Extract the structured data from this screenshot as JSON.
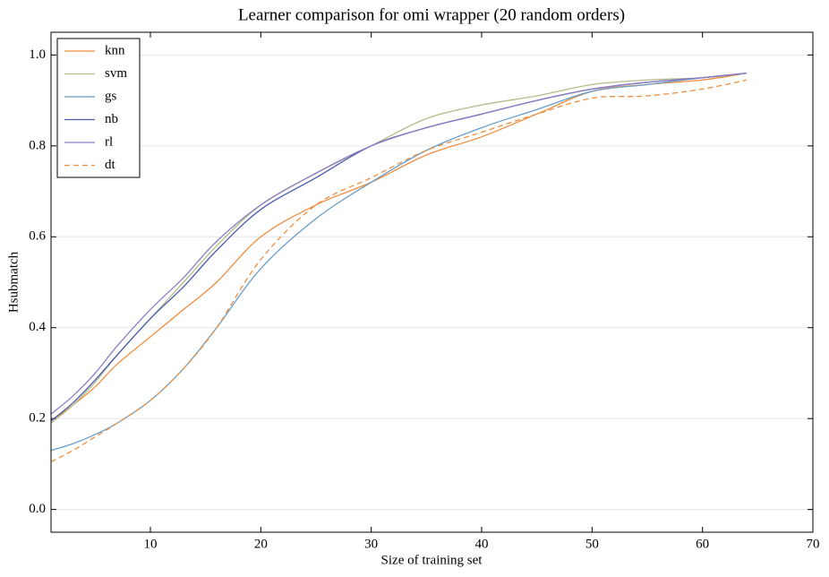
{
  "chart_data": {
    "type": "line",
    "title": "Learner comparison for omi wrapper (20 random orders)",
    "xlabel": "Size of training set",
    "ylabel": "Hsubmatch",
    "x": [
      1,
      3,
      5,
      7,
      10,
      13,
      16,
      20,
      25,
      30,
      35,
      40,
      45,
      50,
      55,
      60,
      64
    ],
    "series": [
      {
        "name": "knn",
        "color": "#ee8e3f",
        "dashed": false,
        "values": [
          0.195,
          0.23,
          0.27,
          0.32,
          0.38,
          0.44,
          0.5,
          0.6,
          0.67,
          0.72,
          0.78,
          0.82,
          0.87,
          0.92,
          0.935,
          0.945,
          0.96
        ]
      },
      {
        "name": "svm",
        "color": "#b3bc8a",
        "dashed": false,
        "values": [
          0.19,
          0.23,
          0.28,
          0.34,
          0.42,
          0.5,
          0.58,
          0.67,
          0.74,
          0.8,
          0.86,
          0.89,
          0.91,
          0.935,
          0.945,
          0.95,
          0.96
        ]
      },
      {
        "name": "gs",
        "color": "#6a9ec8",
        "dashed": false,
        "values": [
          0.13,
          0.145,
          0.165,
          0.19,
          0.24,
          0.31,
          0.4,
          0.53,
          0.64,
          0.72,
          0.79,
          0.84,
          0.88,
          0.92,
          0.935,
          0.95,
          0.96
        ]
      },
      {
        "name": "nb",
        "color": "#4a5aad",
        "dashed": false,
        "values": [
          0.195,
          0.235,
          0.285,
          0.34,
          0.42,
          0.49,
          0.57,
          0.66,
          0.73,
          0.8,
          0.84,
          0.87,
          0.9,
          0.925,
          0.94,
          0.95,
          0.96
        ]
      },
      {
        "name": "rl",
        "color": "#8e7cc3",
        "dashed": false,
        "values": [
          0.21,
          0.25,
          0.3,
          0.36,
          0.44,
          0.51,
          0.59,
          0.67,
          0.74,
          0.8,
          0.84,
          0.87,
          0.9,
          0.925,
          0.94,
          0.95,
          0.96
        ]
      },
      {
        "name": "dt",
        "color": "#ee8e3f",
        "dashed": true,
        "values": [
          0.105,
          0.13,
          0.16,
          0.19,
          0.24,
          0.31,
          0.4,
          0.55,
          0.67,
          0.73,
          0.79,
          0.83,
          0.87,
          0.905,
          0.91,
          0.925,
          0.945
        ]
      }
    ],
    "xlim": [
      1,
      70
    ],
    "xticks": [
      10,
      20,
      30,
      40,
      50,
      60,
      70
    ],
    "ylim": [
      -0.05,
      1.05
    ],
    "yticks": [
      {
        "value": 0,
        "label": "0.0"
      },
      0.2,
      0.4,
      0.6,
      0.8,
      {
        "value": 1,
        "label": "1.0"
      }
    ],
    "grid": true,
    "legend": "upper left"
  }
}
